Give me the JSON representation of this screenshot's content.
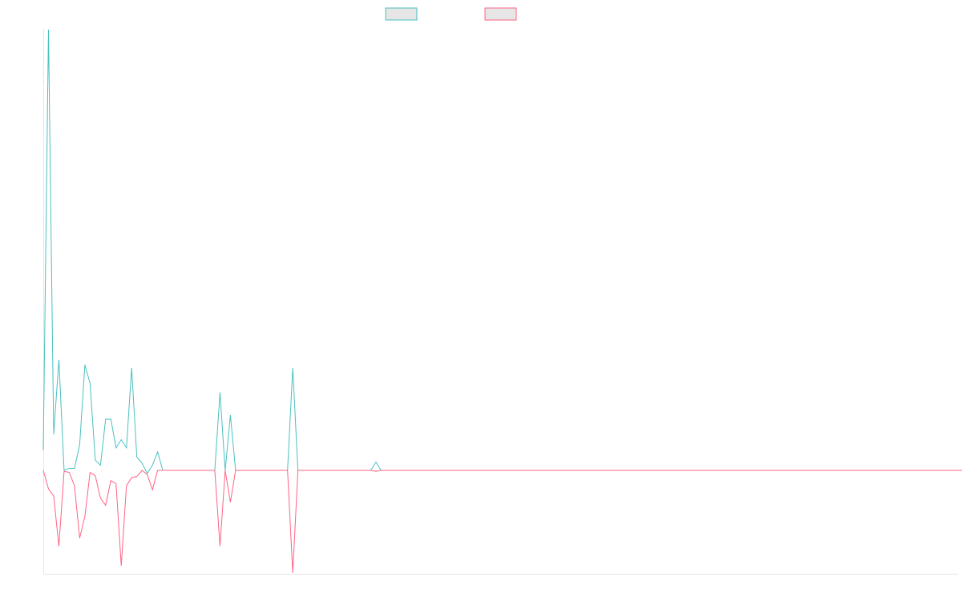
{
  "chart_data": {
    "type": "line",
    "title": "",
    "xlabel": "",
    "ylabel": "",
    "x_count": 177,
    "ylim": [
      -1.0,
      4.3
    ],
    "grid": false,
    "legend_placement": "top-center",
    "series": [
      {
        "color": "#4bc0c0",
        "values": [
          0.2,
          4.3,
          0.35,
          1.08,
          0.0,
          0.02,
          0.02,
          0.25,
          1.03,
          0.85,
          0.1,
          0.05,
          0.5,
          0.5,
          0.22,
          0.3,
          0.22,
          1.0,
          0.13,
          0.07,
          -0.03,
          0.05,
          0.18,
          0.0,
          0.0,
          0.0,
          0.0,
          0.0,
          0.0,
          0.0,
          0.0,
          0.0,
          0.0,
          0.0,
          0.76,
          0.0,
          0.54,
          0.0,
          0.0,
          0.0,
          0.0,
          0.0,
          0.0,
          0.0,
          0.0,
          0.0,
          0.0,
          0.0,
          1.0,
          0.0,
          0.0,
          0.0,
          0.0,
          0.0,
          0.0,
          0.0,
          0.0,
          0.0,
          0.0,
          0.0,
          0.0,
          0.0,
          0.0,
          0.0,
          0.08,
          0.0,
          0.0,
          0.0,
          0.0,
          0.0,
          0.0,
          0.0,
          0.0,
          0.0,
          0.0,
          0.0,
          0.0,
          0.0,
          0.0,
          0.0,
          0.0,
          0.0,
          0.0,
          0.0,
          0.0,
          0.0,
          0.0,
          0.0,
          0.0,
          0.0,
          0.0,
          0.0,
          0.0,
          0.0,
          0.0,
          0.0,
          0.0,
          0.0,
          0.0,
          0.0,
          0.0,
          0.0,
          0.0,
          0.0,
          0.0,
          0.0,
          0.0,
          0.0,
          0.0,
          0.0,
          0.0,
          0.0,
          0.0,
          0.0,
          0.0,
          0.0,
          0.0,
          0.0,
          0.0,
          0.0,
          0.0,
          0.0,
          0.0,
          0.0,
          0.0,
          0.0,
          0.0,
          0.0,
          0.0,
          0.0,
          0.0,
          0.0,
          0.0,
          0.0,
          0.0,
          0.0,
          0.0,
          0.0,
          0.0,
          0.0,
          0.0,
          0.0,
          0.0,
          0.0,
          0.0,
          0.0,
          0.0,
          0.0,
          0.0,
          0.0,
          0.0,
          0.0,
          0.0,
          0.0,
          0.0,
          0.0,
          0.0,
          0.0,
          0.0,
          0.0,
          0.0,
          0.0,
          0.0,
          0.0,
          0.0,
          0.0,
          0.0,
          0.0,
          0.0,
          0.0,
          0.0,
          0.0,
          0.0,
          0.0,
          0.0,
          0.0,
          0.0,
          0.0,
          0.0
        ]
      },
      {
        "color": "#ff6384",
        "values": [
          0.0,
          -0.18,
          -0.25,
          -0.74,
          -0.01,
          -0.02,
          -0.15,
          -0.66,
          -0.45,
          -0.02,
          -0.05,
          -0.27,
          -0.34,
          -0.1,
          -0.13,
          -0.93,
          -0.15,
          -0.07,
          -0.06,
          0.0,
          -0.04,
          -0.19,
          0.0,
          0.0,
          0.0,
          0.0,
          0.0,
          0.0,
          0.0,
          0.0,
          0.0,
          0.0,
          0.0,
          0.0,
          -0.74,
          0.0,
          -0.31,
          0.0,
          0.0,
          0.0,
          0.0,
          0.0,
          0.0,
          0.0,
          0.0,
          0.0,
          0.0,
          0.0,
          -1.0,
          0.0,
          0.0,
          0.0,
          0.0,
          0.0,
          0.0,
          0.0,
          0.0,
          0.0,
          0.0,
          0.0,
          0.0,
          0.0,
          0.0,
          0.0,
          -0.01,
          0.0,
          0.0,
          0.0,
          0.0,
          0.0,
          0.0,
          0.0,
          0.0,
          0.0,
          0.0,
          0.0,
          0.0,
          0.0,
          0.0,
          0.0,
          0.0,
          0.0,
          0.0,
          0.0,
          0.0,
          0.0,
          0.0,
          0.0,
          0.0,
          0.0,
          0.0,
          0.0,
          0.0,
          0.0,
          0.0,
          0.0,
          0.0,
          0.0,
          0.0,
          0.0,
          0.0,
          0.0,
          0.0,
          0.0,
          0.0,
          0.0,
          0.0,
          0.0,
          0.0,
          0.0,
          0.0,
          0.0,
          0.0,
          0.0,
          0.0,
          0.0,
          0.0,
          0.0,
          0.0,
          0.0,
          0.0,
          0.0,
          0.0,
          0.0,
          0.0,
          0.0,
          0.0,
          0.0,
          0.0,
          0.0,
          0.0,
          0.0,
          0.0,
          0.0,
          0.0,
          0.0,
          0.0,
          0.0,
          0.0,
          0.0,
          0.0,
          0.0,
          0.0,
          0.0,
          0.0,
          0.0,
          0.0,
          0.0,
          0.0,
          0.0,
          0.0,
          0.0,
          0.0,
          0.0,
          0.0,
          0.0,
          0.0,
          0.0,
          0.0,
          0.0,
          0.0,
          0.0,
          0.0,
          0.0,
          0.0,
          0.0,
          0.0,
          0.0,
          0.0,
          0.0,
          0.0,
          0.0,
          0.0,
          0.0,
          0.0,
          0.0,
          0.0,
          0.0,
          0.0,
          0.0,
          0.0
        ]
      }
    ]
  }
}
